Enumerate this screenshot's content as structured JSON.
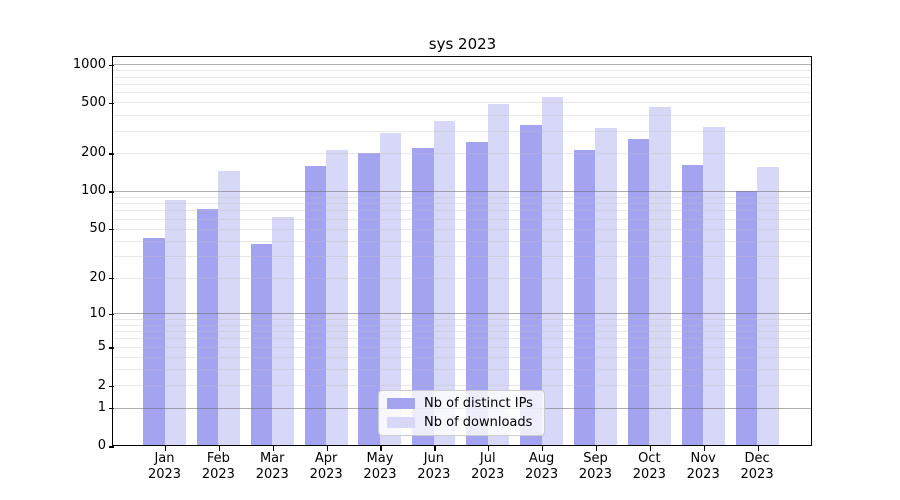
{
  "title": "sys 2023",
  "legend": {
    "items": [
      {
        "label": "Nb of distinct IPs",
        "color": "#a3a3f0"
      },
      {
        "label": "Nb of downloads",
        "color": "#d7d7f7"
      }
    ]
  },
  "axis": {
    "y_ticks": [
      {
        "label": "1000",
        "value": 1000
      },
      {
        "label": "500",
        "value": 500
      },
      {
        "label": "200",
        "value": 200
      },
      {
        "label": "100",
        "value": 100
      },
      {
        "label": "50",
        "value": 50
      },
      {
        "label": "20",
        "value": 20
      },
      {
        "label": "10",
        "value": 10
      },
      {
        "label": "5",
        "value": 5
      },
      {
        "label": "2",
        "value": 2
      },
      {
        "label": "1",
        "value": 1
      },
      {
        "label": "0",
        "value": 0
      }
    ],
    "x_months": [
      "Jan",
      "Feb",
      "Mar",
      "Apr",
      "May",
      "Jun",
      "Jul",
      "Aug",
      "Sep",
      "Oct",
      "Nov",
      "Dec"
    ],
    "x_year": "2023"
  },
  "chart_data": {
    "type": "bar",
    "title": "sys 2023",
    "categories": [
      "Jan 2023",
      "Feb 2023",
      "Mar 2023",
      "Apr 2023",
      "May 2023",
      "Jun 2023",
      "Jul 2023",
      "Aug 2023",
      "Sep 2023",
      "Oct 2023",
      "Nov 2023",
      "Dec 2023"
    ],
    "series": [
      {
        "name": "Nb of distinct IPs",
        "color": "#a3a3f0",
        "values": [
          42,
          72,
          38,
          158,
          200,
          220,
          245,
          330,
          210,
          260,
          160,
          100
        ]
      },
      {
        "name": "Nb of downloads",
        "color": "#d7d7f7",
        "values": [
          85,
          143,
          62,
          212,
          285,
          360,
          485,
          555,
          315,
          460,
          320,
          155
        ]
      }
    ],
    "yscale": "log10(1+x)",
    "ylim": [
      0,
      1134
    ],
    "yticks": [
      1000,
      500,
      200,
      100,
      50,
      20,
      10,
      5,
      2,
      1,
      0
    ],
    "grid": "horizontal-major-and-log-minor",
    "legend_position": "lower center"
  }
}
